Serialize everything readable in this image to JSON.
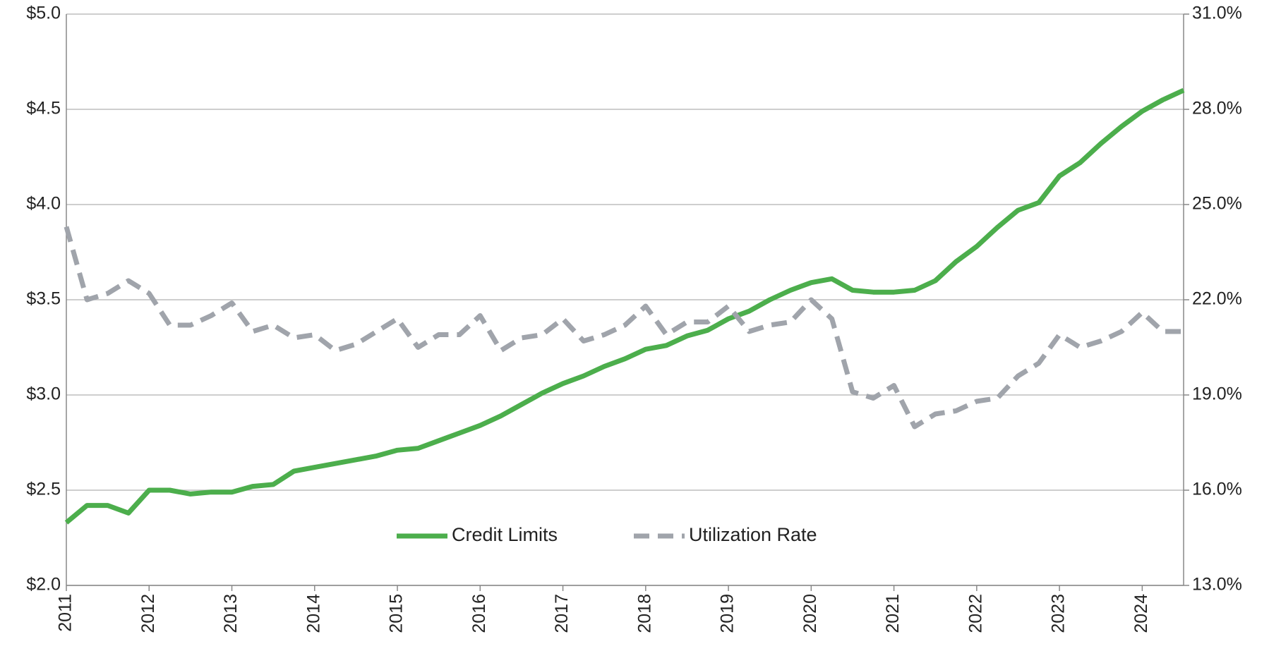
{
  "chart_data": {
    "type": "line",
    "x": [
      2011,
      2011.25,
      2011.5,
      2011.75,
      2012,
      2012.25,
      2012.5,
      2012.75,
      2013,
      2013.25,
      2013.5,
      2013.75,
      2014,
      2014.25,
      2014.5,
      2014.75,
      2015,
      2015.25,
      2015.5,
      2015.75,
      2016,
      2016.25,
      2016.5,
      2016.75,
      2017,
      2017.25,
      2017.5,
      2017.75,
      2018,
      2018.25,
      2018.5,
      2018.75,
      2019,
      2019.25,
      2019.5,
      2019.75,
      2020,
      2020.25,
      2020.5,
      2020.75,
      2021,
      2021.25,
      2021.5,
      2021.75,
      2022,
      2022.25,
      2022.5,
      2022.75,
      2023,
      2023.25,
      2023.5,
      2023.75,
      2024,
      2024.25,
      2024.5
    ],
    "series": [
      {
        "name": "Credit Limits",
        "color": "#4cae4c",
        "dash": false,
        "values": [
          2.33,
          2.42,
          2.42,
          2.38,
          2.5,
          2.5,
          2.48,
          2.49,
          2.49,
          2.52,
          2.53,
          2.6,
          2.62,
          2.64,
          2.66,
          2.68,
          2.71,
          2.72,
          2.76,
          2.8,
          2.84,
          2.89,
          2.95,
          3.01,
          3.06,
          3.1,
          3.15,
          3.19,
          3.24,
          3.26,
          3.31,
          3.34,
          3.4,
          3.44,
          3.5,
          3.55,
          3.59,
          3.61,
          3.55,
          3.54,
          3.54,
          3.55,
          3.6,
          3.7,
          3.78,
          3.88,
          3.97,
          4.01,
          4.15,
          4.22,
          4.32,
          4.41,
          4.49,
          4.55,
          4.6
        ]
      },
      {
        "name": "Utilization Rate",
        "color": "#a0a4ab",
        "dash": true,
        "axis": "y2",
        "values": [
          24.3,
          22.0,
          22.2,
          22.6,
          22.2,
          21.2,
          21.2,
          21.5,
          21.9,
          21.0,
          21.2,
          20.8,
          20.9,
          20.4,
          20.6,
          21.0,
          21.4,
          20.5,
          20.9,
          20.9,
          21.5,
          20.4,
          20.8,
          20.9,
          21.4,
          20.7,
          20.9,
          21.2,
          21.8,
          20.9,
          21.3,
          21.3,
          21.8,
          21.0,
          21.2,
          21.3,
          22.0,
          21.4,
          19.1,
          18.9,
          19.3,
          18.0,
          18.4,
          18.5,
          18.8,
          18.9,
          19.6,
          20.0,
          20.9,
          20.5,
          20.7,
          21.0,
          21.6,
          21.0,
          21.0
        ]
      }
    ],
    "xlim": [
      2011,
      2024.5
    ],
    "xticks": [
      2011,
      2012,
      2013,
      2014,
      2015,
      2016,
      2017,
      2018,
      2019,
      2020,
      2021,
      2022,
      2023,
      2024
    ],
    "ylim": [
      2,
      5
    ],
    "yticks": [
      {
        "value": 2,
        "label": "$2.0"
      },
      {
        "value": 2.5,
        "label": "$2.5"
      },
      {
        "value": 3,
        "label": "$3.0"
      },
      {
        "value": 3.5,
        "label": "$3.5"
      },
      {
        "value": 4,
        "label": "$4.0"
      },
      {
        "value": 4.5,
        "label": "$4.5"
      },
      {
        "value": 5,
        "label": "$5.0"
      }
    ],
    "y2lim": [
      13,
      31
    ],
    "y2ticks": [
      {
        "value": 13,
        "label": "13.0%"
      },
      {
        "value": 16,
        "label": "16.0%"
      },
      {
        "value": 19,
        "label": "19.0%"
      },
      {
        "value": 22,
        "label": "22.0%"
      },
      {
        "value": 25,
        "label": "25.0%"
      },
      {
        "value": 28,
        "label": "28.0%"
      },
      {
        "value": 31,
        "label": "31.0%"
      }
    ],
    "grid": true,
    "legend": "bottom"
  }
}
